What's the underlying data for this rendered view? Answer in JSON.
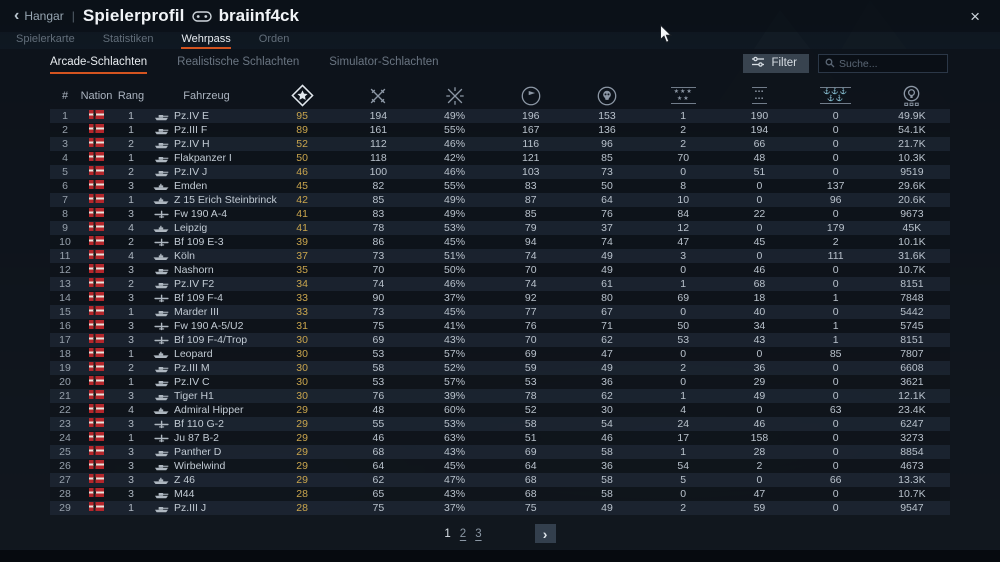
{
  "window": {
    "back_label": "Hangar",
    "separator": "|",
    "title": "Spielerprofil",
    "player": "braiinf4ck",
    "close_glyph": "×"
  },
  "tabs": [
    {
      "label": "Spielerkarte",
      "active": false
    },
    {
      "label": "Statistiken",
      "active": false
    },
    {
      "label": "Wehrpass",
      "active": true
    },
    {
      "label": "Orden",
      "active": false
    }
  ],
  "subtabs": [
    {
      "label": "Arcade-Schlachten",
      "active": true
    },
    {
      "label": "Realistische Schlachten",
      "active": false
    },
    {
      "label": "Simulator-Schlachten",
      "active": false
    }
  ],
  "filter": {
    "label": "Filter"
  },
  "search": {
    "placeholder": "Suche..."
  },
  "accent_color": "#d35420",
  "gold_color": "#c9a54d",
  "table": {
    "text_headers": [
      "#",
      "Nation",
      "Rang",
      "Fahrzeug"
    ],
    "icon_headers": [
      {
        "name": "wins-icon",
        "key": "wins"
      },
      {
        "name": "battles-icon",
        "key": "battles"
      },
      {
        "name": "winrate-icon",
        "key": "winrate"
      },
      {
        "name": "respawns-flag-icon",
        "key": "respawns"
      },
      {
        "name": "deaths-skull-icon",
        "key": "deaths"
      },
      {
        "name": "air-targets-icon",
        "key": "air-targets"
      },
      {
        "name": "ground-targets-icon",
        "key": "ground-targets"
      },
      {
        "name": "naval-targets-icon",
        "key": "naval-targets"
      },
      {
        "name": "research-points-icon",
        "key": "research-points"
      }
    ],
    "rows": [
      {
        "num": "1",
        "nation": "Deutschland",
        "rank": "1",
        "type": "tank",
        "vehicle": "Pz.IV E",
        "stats": [
          "95",
          "194",
          "49%",
          "196",
          "153",
          "1",
          "190",
          "0",
          "49.9K"
        ]
      },
      {
        "num": "2",
        "nation": "Deutschland",
        "rank": "1",
        "type": "tank",
        "vehicle": "Pz.III F",
        "stats": [
          "89",
          "161",
          "55%",
          "167",
          "136",
          "2",
          "194",
          "0",
          "54.1K"
        ]
      },
      {
        "num": "3",
        "nation": "Deutschland",
        "rank": "2",
        "type": "tank",
        "vehicle": "Pz.IV H",
        "stats": [
          "52",
          "112",
          "46%",
          "116",
          "96",
          "2",
          "66",
          "0",
          "21.7K"
        ]
      },
      {
        "num": "4",
        "nation": "Deutschland",
        "rank": "1",
        "type": "tank",
        "vehicle": "Flakpanzer I",
        "stats": [
          "50",
          "118",
          "42%",
          "121",
          "85",
          "70",
          "48",
          "0",
          "10.3K"
        ]
      },
      {
        "num": "5",
        "nation": "Deutschland",
        "rank": "2",
        "type": "tank",
        "vehicle": "Pz.IV J",
        "stats": [
          "46",
          "100",
          "46%",
          "103",
          "73",
          "0",
          "51",
          "0",
          "9519"
        ]
      },
      {
        "num": "6",
        "nation": "Deutschland",
        "rank": "3",
        "type": "ship",
        "vehicle": "Emden",
        "stats": [
          "45",
          "82",
          "55%",
          "83",
          "50",
          "8",
          "0",
          "137",
          "29.6K"
        ]
      },
      {
        "num": "7",
        "nation": "Deutschland",
        "rank": "1",
        "type": "ship",
        "vehicle": "Z 15 Erich Steinbrinck",
        "stats": [
          "42",
          "85",
          "49%",
          "87",
          "64",
          "10",
          "0",
          "96",
          "20.6K"
        ]
      },
      {
        "num": "8",
        "nation": "Deutschland",
        "rank": "3",
        "type": "plane",
        "vehicle": "Fw 190 A-4",
        "stats": [
          "41",
          "83",
          "49%",
          "85",
          "76",
          "84",
          "22",
          "0",
          "9673"
        ]
      },
      {
        "num": "9",
        "nation": "Deutschland",
        "rank": "4",
        "type": "ship",
        "vehicle": "Leipzig",
        "stats": [
          "41",
          "78",
          "53%",
          "79",
          "37",
          "12",
          "0",
          "179",
          "45K"
        ]
      },
      {
        "num": "10",
        "nation": "Deutschland",
        "rank": "2",
        "type": "plane",
        "vehicle": "Bf 109 E-3",
        "stats": [
          "39",
          "86",
          "45%",
          "94",
          "74",
          "47",
          "45",
          "2",
          "10.1K"
        ]
      },
      {
        "num": "11",
        "nation": "Deutschland",
        "rank": "4",
        "type": "ship",
        "vehicle": "Köln",
        "stats": [
          "37",
          "73",
          "51%",
          "74",
          "49",
          "3",
          "0",
          "111",
          "31.6K"
        ]
      },
      {
        "num": "12",
        "nation": "Deutschland",
        "rank": "3",
        "type": "tank",
        "vehicle": "Nashorn",
        "stats": [
          "35",
          "70",
          "50%",
          "70",
          "49",
          "0",
          "46",
          "0",
          "10.7K"
        ]
      },
      {
        "num": "13",
        "nation": "Deutschland",
        "rank": "2",
        "type": "tank",
        "vehicle": "Pz.IV F2",
        "stats": [
          "34",
          "74",
          "46%",
          "74",
          "61",
          "1",
          "68",
          "0",
          "8151"
        ]
      },
      {
        "num": "14",
        "nation": "Deutschland",
        "rank": "3",
        "type": "plane",
        "vehicle": "Bf 109 F-4",
        "stats": [
          "33",
          "90",
          "37%",
          "92",
          "80",
          "69",
          "18",
          "1",
          "7848"
        ]
      },
      {
        "num": "15",
        "nation": "Deutschland",
        "rank": "1",
        "type": "tank",
        "vehicle": "Marder III",
        "stats": [
          "33",
          "73",
          "45%",
          "77",
          "67",
          "0",
          "40",
          "0",
          "5442"
        ]
      },
      {
        "num": "16",
        "nation": "Deutschland",
        "rank": "3",
        "type": "plane",
        "vehicle": "Fw 190 A-5/U2",
        "stats": [
          "31",
          "75",
          "41%",
          "76",
          "71",
          "50",
          "34",
          "1",
          "5745"
        ]
      },
      {
        "num": "17",
        "nation": "Deutschland",
        "rank": "3",
        "type": "plane",
        "vehicle": "Bf 109 F-4/Trop",
        "stats": [
          "30",
          "69",
          "43%",
          "70",
          "62",
          "53",
          "43",
          "1",
          "8151"
        ]
      },
      {
        "num": "18",
        "nation": "Deutschland",
        "rank": "1",
        "type": "ship",
        "vehicle": "Leopard",
        "stats": [
          "30",
          "53",
          "57%",
          "69",
          "47",
          "0",
          "0",
          "85",
          "7807"
        ]
      },
      {
        "num": "19",
        "nation": "Deutschland",
        "rank": "2",
        "type": "tank",
        "vehicle": "Pz.III M",
        "stats": [
          "30",
          "58",
          "52%",
          "59",
          "49",
          "2",
          "36",
          "0",
          "6608"
        ]
      },
      {
        "num": "20",
        "nation": "Deutschland",
        "rank": "1",
        "type": "tank",
        "vehicle": "Pz.IV C",
        "stats": [
          "30",
          "53",
          "57%",
          "53",
          "36",
          "0",
          "29",
          "0",
          "3621"
        ]
      },
      {
        "num": "21",
        "nation": "Deutschland",
        "rank": "3",
        "type": "tank",
        "vehicle": "Tiger H1",
        "stats": [
          "30",
          "76",
          "39%",
          "78",
          "62",
          "1",
          "49",
          "0",
          "12.1K"
        ]
      },
      {
        "num": "22",
        "nation": "Deutschland",
        "rank": "4",
        "type": "ship",
        "vehicle": "Admiral Hipper",
        "stats": [
          "29",
          "48",
          "60%",
          "52",
          "30",
          "4",
          "0",
          "63",
          "23.4K"
        ]
      },
      {
        "num": "23",
        "nation": "Deutschland",
        "rank": "3",
        "type": "plane",
        "vehicle": "Bf 110 G-2",
        "stats": [
          "29",
          "55",
          "53%",
          "58",
          "54",
          "24",
          "46",
          "0",
          "6247"
        ]
      },
      {
        "num": "24",
        "nation": "Deutschland",
        "rank": "1",
        "type": "plane",
        "vehicle": "Ju 87 B-2",
        "stats": [
          "29",
          "46",
          "63%",
          "51",
          "46",
          "17",
          "158",
          "0",
          "3273"
        ]
      },
      {
        "num": "25",
        "nation": "Deutschland",
        "rank": "3",
        "type": "tank",
        "vehicle": "Panther D",
        "stats": [
          "29",
          "68",
          "43%",
          "69",
          "58",
          "1",
          "28",
          "0",
          "8854"
        ]
      },
      {
        "num": "26",
        "nation": "Deutschland",
        "rank": "3",
        "type": "tank",
        "vehicle": "Wirbelwind",
        "stats": [
          "29",
          "64",
          "45%",
          "64",
          "36",
          "54",
          "2",
          "0",
          "4673"
        ]
      },
      {
        "num": "27",
        "nation": "Deutschland",
        "rank": "3",
        "type": "ship",
        "vehicle": "Z 46",
        "stats": [
          "29",
          "62",
          "47%",
          "68",
          "58",
          "5",
          "0",
          "66",
          "13.3K"
        ]
      },
      {
        "num": "28",
        "nation": "Deutschland",
        "rank": "3",
        "type": "tank",
        "vehicle": "M44",
        "stats": [
          "28",
          "65",
          "43%",
          "68",
          "58",
          "0",
          "47",
          "0",
          "10.7K"
        ]
      },
      {
        "num": "29",
        "nation": "Deutschland",
        "rank": "1",
        "type": "tank",
        "vehicle": "Pz.III J",
        "stats": [
          "28",
          "75",
          "37%",
          "75",
          "49",
          "2",
          "59",
          "0",
          "9547"
        ]
      }
    ]
  },
  "pagination": {
    "pages": [
      "1",
      "2",
      "3"
    ],
    "current": "1",
    "next_glyph": "›"
  }
}
